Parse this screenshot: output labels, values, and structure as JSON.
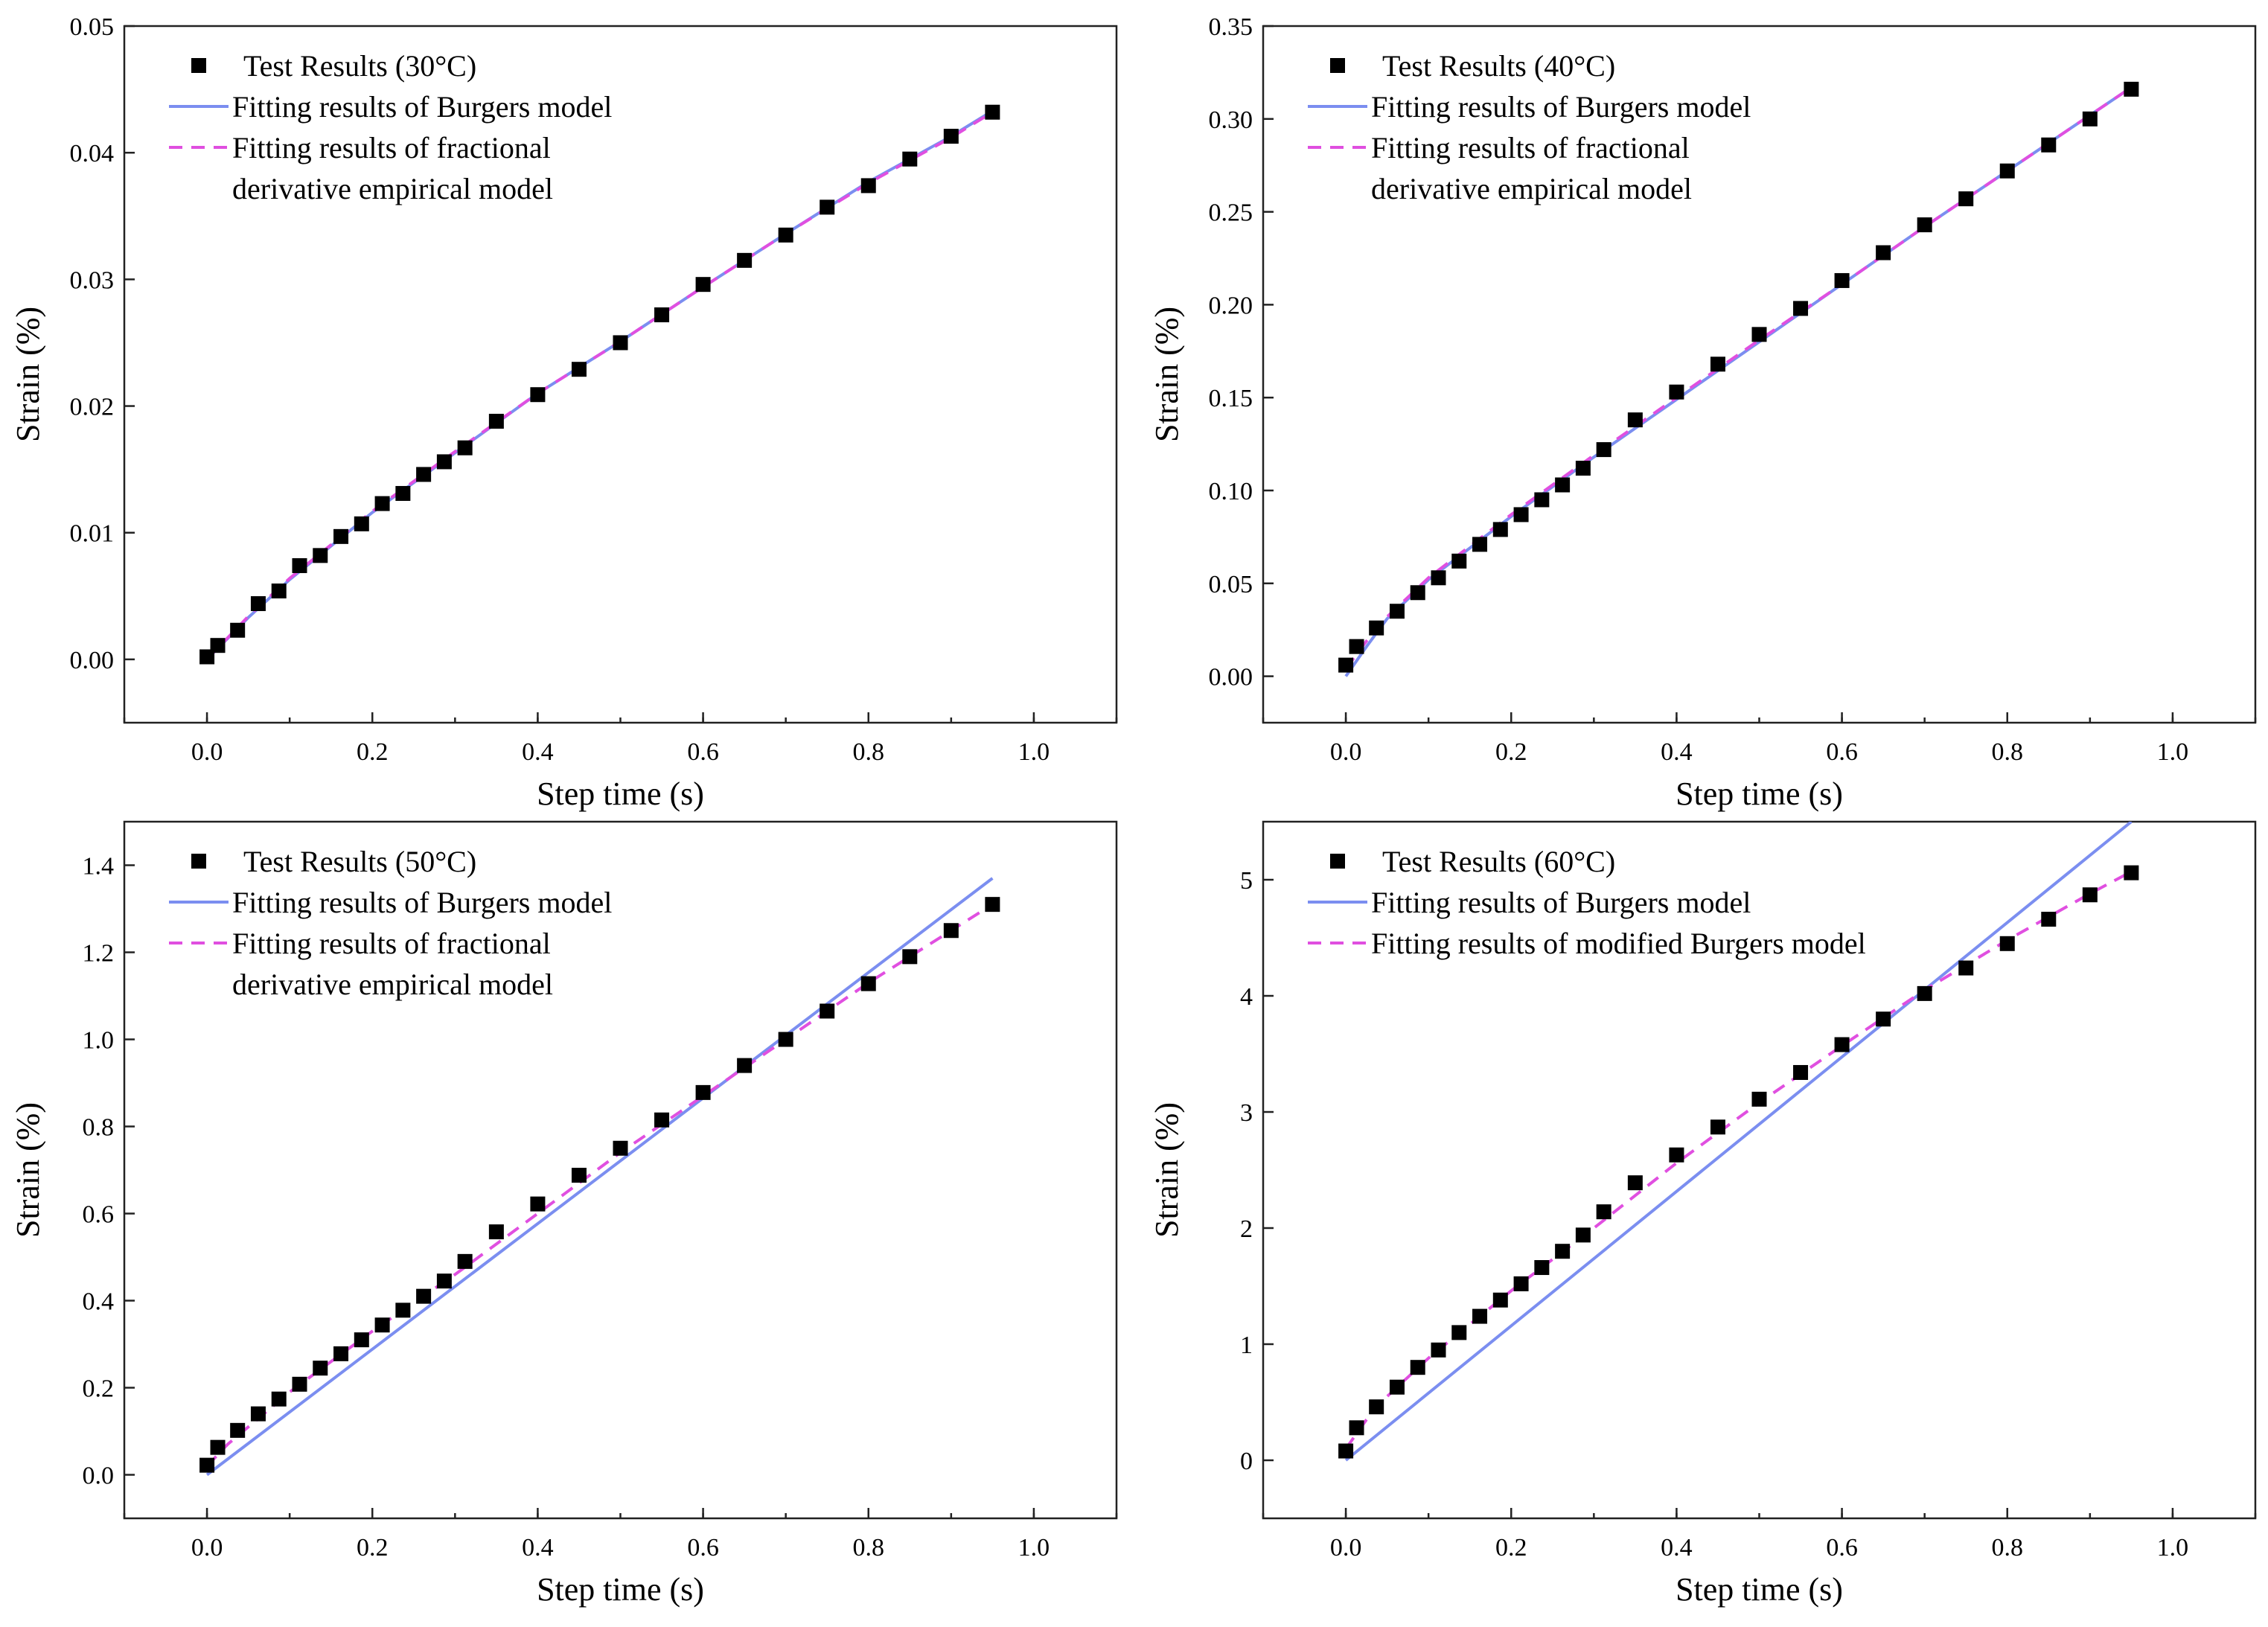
{
  "chart_data": [
    {
      "type": "line",
      "xlabel": "Step time (s)",
      "ylabel": "Strain (%)",
      "xlim": [
        -0.1,
        1.1
      ],
      "ylim": [
        -0.005,
        0.05
      ],
      "xticks": [
        "0.0",
        "0.2",
        "0.4",
        "0.6",
        "0.8",
        "1.0"
      ],
      "yticks": [
        "0.00",
        "0.01",
        "0.02",
        "0.03",
        "0.04",
        "0.05"
      ],
      "grid": false,
      "legend_position": "top-left",
      "legend": [
        "Test Results (30°C)",
        "Fitting results of Burgers model",
        "Fitting results of fractional",
        "derivative empirical model"
      ],
      "colors": {
        "test": "#000000",
        "burgers": "#7b8ef0",
        "fitted": "#e04fe0"
      },
      "series": [
        {
          "name": "Test Results (30°C)",
          "kind": "scatter",
          "x": [
            0.0,
            0.013,
            0.037,
            0.062,
            0.087,
            0.112,
            0.137,
            0.162,
            0.187,
            0.212,
            0.237,
            0.262,
            0.287,
            0.312,
            0.35,
            0.4,
            0.45,
            0.5,
            0.55,
            0.6,
            0.65,
            0.7,
            0.75,
            0.8,
            0.85,
            0.9,
            0.95
          ],
          "y": [
            0.0002,
            0.0011,
            0.0023,
            0.0044,
            0.0054,
            0.0074,
            0.0082,
            0.0097,
            0.0107,
            0.0123,
            0.0131,
            0.0146,
            0.0156,
            0.0167,
            0.0188,
            0.0209,
            0.0229,
            0.025,
            0.0272,
            0.0296,
            0.0315,
            0.0335,
            0.0357,
            0.0374,
            0.0395,
            0.0413,
            0.0432
          ]
        },
        {
          "name": "Fitting results of Burgers model",
          "kind": "line",
          "x": [
            0.0,
            0.05,
            0.1,
            0.2,
            0.3,
            0.4,
            0.5,
            0.6,
            0.7,
            0.8,
            0.9,
            0.95
          ],
          "y": [
            0.0,
            0.0033,
            0.0063,
            0.0116,
            0.0163,
            0.021,
            0.0251,
            0.0294,
            0.0336,
            0.0377,
            0.0413,
            0.0433
          ]
        },
        {
          "name": "Fitting results of fractional derivative empirical model",
          "kind": "dashed",
          "x": [
            0.0,
            0.05,
            0.1,
            0.2,
            0.3,
            0.4,
            0.5,
            0.6,
            0.7,
            0.8,
            0.9,
            0.95
          ],
          "y": [
            0.0,
            0.0034,
            0.0064,
            0.0117,
            0.0164,
            0.021,
            0.0251,
            0.0294,
            0.0336,
            0.0376,
            0.0412,
            0.0432
          ]
        }
      ]
    },
    {
      "type": "line",
      "xlabel": "Step time (s)",
      "ylabel": "Strain (%)",
      "xlim": [
        -0.1,
        1.1
      ],
      "ylim": [
        -0.025,
        0.35
      ],
      "xticks": [
        "0.0",
        "0.2",
        "0.4",
        "0.6",
        "0.8",
        "1.0"
      ],
      "yticks": [
        "0.00",
        "0.05",
        "0.10",
        "0.15",
        "0.20",
        "0.25",
        "0.30",
        "0.35"
      ],
      "grid": false,
      "legend_position": "top-left",
      "legend": [
        "Test Results (40°C)",
        "Fitting results of Burgers model",
        "Fitting results of fractional",
        "derivative empirical model"
      ],
      "colors": {
        "test": "#000000",
        "burgers": "#7b8ef0",
        "fitted": "#e04fe0"
      },
      "series": [
        {
          "name": "Test Results (40°C)",
          "kind": "scatter",
          "x": [
            0.0,
            0.013,
            0.037,
            0.062,
            0.087,
            0.112,
            0.137,
            0.162,
            0.187,
            0.212,
            0.237,
            0.262,
            0.287,
            0.312,
            0.35,
            0.4,
            0.45,
            0.5,
            0.55,
            0.6,
            0.65,
            0.7,
            0.75,
            0.8,
            0.85,
            0.9,
            0.95
          ],
          "y": [
            0.006,
            0.016,
            0.026,
            0.035,
            0.045,
            0.053,
            0.062,
            0.071,
            0.079,
            0.087,
            0.095,
            0.103,
            0.112,
            0.122,
            0.138,
            0.153,
            0.168,
            0.184,
            0.198,
            0.213,
            0.228,
            0.243,
            0.257,
            0.272,
            0.286,
            0.3,
            0.316
          ]
        },
        {
          "name": "Fitting results of Burgers model",
          "kind": "line",
          "x": [
            0.0,
            0.025,
            0.05,
            0.1,
            0.2,
            0.3,
            0.4,
            0.5,
            0.6,
            0.7,
            0.8,
            0.9,
            0.95
          ],
          "y": [
            0.0,
            0.016,
            0.031,
            0.052,
            0.086,
            0.118,
            0.149,
            0.18,
            0.211,
            0.242,
            0.272,
            0.302,
            0.317
          ]
        },
        {
          "name": "Fitting results of fractional derivative empirical model",
          "kind": "dashed",
          "x": [
            0.0,
            0.025,
            0.05,
            0.1,
            0.2,
            0.3,
            0.4,
            0.5,
            0.6,
            0.7,
            0.8,
            0.9,
            0.95
          ],
          "y": [
            0.004,
            0.019,
            0.032,
            0.053,
            0.087,
            0.119,
            0.15,
            0.181,
            0.211,
            0.242,
            0.272,
            0.302,
            0.317
          ]
        }
      ]
    },
    {
      "type": "line",
      "xlabel": "Step time (s)",
      "ylabel": "Strain (%)",
      "xlim": [
        -0.1,
        1.1
      ],
      "ylim": [
        -0.1,
        1.5
      ],
      "xticks": [
        "0.0",
        "0.2",
        "0.4",
        "0.6",
        "0.8",
        "1.0"
      ],
      "yticks": [
        "0.0",
        "0.2",
        "0.4",
        "0.6",
        "0.8",
        "1.0",
        "1.2",
        "1.4"
      ],
      "grid": false,
      "legend_position": "top-left",
      "legend": [
        "Test Results (50°C)",
        "Fitting results of Burgers model",
        "Fitting results of fractional",
        "derivative empirical model"
      ],
      "colors": {
        "test": "#000000",
        "burgers": "#7b8ef0",
        "fitted": "#e04fe0"
      },
      "series": [
        {
          "name": "Test Results (50°C)",
          "kind": "scatter",
          "x": [
            0.0,
            0.013,
            0.037,
            0.062,
            0.087,
            0.112,
            0.137,
            0.162,
            0.187,
            0.212,
            0.237,
            0.262,
            0.287,
            0.312,
            0.35,
            0.4,
            0.45,
            0.5,
            0.55,
            0.6,
            0.65,
            0.7,
            0.75,
            0.8,
            0.85,
            0.9,
            0.95
          ],
          "y": [
            0.022,
            0.063,
            0.102,
            0.14,
            0.174,
            0.208,
            0.245,
            0.278,
            0.31,
            0.344,
            0.378,
            0.41,
            0.445,
            0.49,
            0.558,
            0.622,
            0.688,
            0.75,
            0.815,
            0.878,
            0.94,
            1.0,
            1.065,
            1.128,
            1.19,
            1.25,
            1.31
          ]
        },
        {
          "name": "Fitting results of Burgers model",
          "kind": "line",
          "x": [
            0.0,
            0.95
          ],
          "y": [
            0.0,
            1.37
          ]
        },
        {
          "name": "Fitting results of fractional derivative empirical model",
          "kind": "dashed",
          "x": [
            0.0,
            0.025,
            0.05,
            0.1,
            0.2,
            0.3,
            0.4,
            0.5,
            0.6,
            0.7,
            0.8,
            0.9,
            0.95
          ],
          "y": [
            0.02,
            0.07,
            0.11,
            0.19,
            0.33,
            0.46,
            0.6,
            0.74,
            0.87,
            1.0,
            1.13,
            1.25,
            1.31
          ]
        }
      ]
    },
    {
      "type": "line",
      "xlabel": "Step time (s)",
      "ylabel": "Strain (%)",
      "xlim": [
        -0.1,
        1.1
      ],
      "ylim": [
        -0.5,
        5.5
      ],
      "xticks": [
        "0.0",
        "0.2",
        "0.4",
        "0.6",
        "0.8",
        "1.0"
      ],
      "yticks": [
        "0",
        "1",
        "2",
        "3",
        "4",
        "5"
      ],
      "grid": false,
      "legend_position": "top-left",
      "legend": [
        "Test Results (60°C)",
        "Fitting results of Burgers model",
        "Fitting results of modified Burgers model"
      ],
      "colors": {
        "test": "#000000",
        "burgers": "#7b8ef0",
        "fitted": "#e04fe0"
      },
      "series": [
        {
          "name": "Test Results (60°C)",
          "kind": "scatter",
          "x": [
            0.0,
            0.013,
            0.037,
            0.062,
            0.087,
            0.112,
            0.137,
            0.162,
            0.187,
            0.212,
            0.237,
            0.262,
            0.287,
            0.312,
            0.35,
            0.4,
            0.45,
            0.5,
            0.55,
            0.6,
            0.65,
            0.7,
            0.75,
            0.8,
            0.85,
            0.9,
            0.95
          ],
          "y": [
            0.08,
            0.28,
            0.46,
            0.63,
            0.8,
            0.95,
            1.1,
            1.24,
            1.38,
            1.52,
            1.66,
            1.8,
            1.94,
            2.14,
            2.39,
            2.63,
            2.87,
            3.11,
            3.34,
            3.58,
            3.8,
            4.02,
            4.24,
            4.45,
            4.66,
            4.87,
            5.06
          ]
        },
        {
          "name": "Fitting results of Burgers model",
          "kind": "line",
          "x": [
            0.0,
            0.95
          ],
          "y": [
            0.0,
            5.5
          ]
        },
        {
          "name": "Fitting results of modified Burgers model",
          "kind": "dashed",
          "x": [
            0.0,
            0.025,
            0.05,
            0.1,
            0.2,
            0.3,
            0.4,
            0.5,
            0.6,
            0.7,
            0.8,
            0.9,
            0.95
          ],
          "y": [
            0.1,
            0.35,
            0.55,
            0.88,
            1.46,
            2.0,
            2.56,
            3.08,
            3.57,
            4.05,
            4.48,
            4.88,
            5.07
          ]
        }
      ]
    }
  ]
}
